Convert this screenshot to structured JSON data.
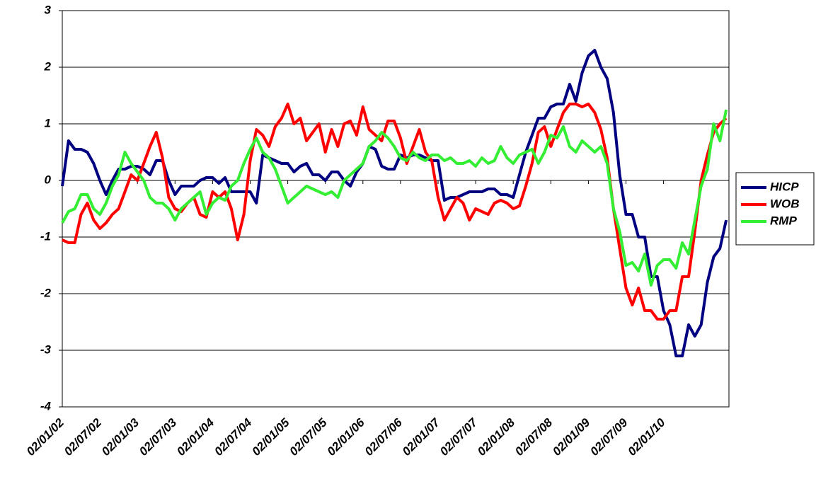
{
  "chart_data": {
    "type": "line",
    "categories": [
      "02/01/02",
      null,
      null,
      null,
      null,
      null,
      "02/07/02",
      null,
      null,
      null,
      null,
      null,
      "02/01/03",
      null,
      null,
      null,
      null,
      null,
      "02/07/03",
      null,
      null,
      null,
      null,
      null,
      "02/01/04",
      null,
      null,
      null,
      null,
      null,
      "02/07/04",
      null,
      null,
      null,
      null,
      null,
      "02/01/05",
      null,
      null,
      null,
      null,
      null,
      "02/07/05",
      null,
      null,
      null,
      null,
      null,
      "02/01/06",
      null,
      null,
      null,
      null,
      null,
      "02/07/06",
      null,
      null,
      null,
      null,
      null,
      "02/01/07",
      null,
      null,
      null,
      null,
      null,
      "02/07/07",
      null,
      null,
      null,
      null,
      null,
      "02/01/08",
      null,
      null,
      null,
      null,
      null,
      "02/07/08",
      null,
      null,
      null,
      null,
      null,
      "02/01/09",
      null,
      null,
      null,
      null,
      null,
      "02/07/09",
      null,
      null,
      null,
      null,
      null,
      "02/01/10",
      null,
      null,
      null,
      null,
      null,
      null,
      null,
      null,
      null,
      null
    ],
    "series": [
      {
        "name": "HICP",
        "color": "#000080",
        "values": [
          -0.1,
          0.7,
          0.55,
          0.55,
          0.5,
          0.3,
          0,
          -0.25,
          0,
          0.2,
          0.2,
          0.25,
          0.25,
          0.2,
          0.1,
          0.35,
          0.35,
          0,
          -0.25,
          -0.1,
          -0.1,
          -0.1,
          0,
          0.05,
          0.05,
          -0.05,
          0.05,
          -0.2,
          -0.2,
          -0.2,
          -0.2,
          -0.4,
          0.45,
          0.4,
          0.35,
          0.3,
          0.3,
          0.15,
          0.25,
          0.3,
          0.1,
          0.1,
          0,
          0.15,
          0.15,
          0,
          -0.1,
          0.15,
          0.3,
          0.6,
          0.55,
          0.25,
          0.2,
          0.2,
          0.45,
          0.4,
          0.45,
          0.45,
          0.4,
          0.35,
          0.35,
          -0.35,
          -0.3,
          -0.3,
          -0.25,
          -0.2,
          -0.2,
          -0.2,
          -0.15,
          -0.15,
          -0.25,
          -0.25,
          -0.3,
          0.1,
          0.5,
          0.8,
          1.1,
          1.1,
          1.3,
          1.35,
          1.35,
          1.7,
          1.4,
          1.9,
          2.2,
          2.3,
          2.0,
          1.8,
          1.2,
          0.1,
          -0.6,
          -0.6,
          -1.0,
          -1.0,
          -1.7,
          -1.7,
          -2.3,
          -2.55,
          -3.1,
          -3.1,
          -2.55,
          -2.75,
          -2.55,
          -1.8,
          -1.35,
          -1.2,
          -0.7
        ]
      },
      {
        "name": "WOB",
        "color": "#ff0000",
        "values": [
          -1.05,
          -1.1,
          -1.1,
          -0.6,
          -0.4,
          -0.7,
          -0.85,
          -0.75,
          -0.6,
          -0.5,
          -0.2,
          0.1,
          0.0,
          0.3,
          0.6,
          0.85,
          0.4,
          -0.3,
          -0.5,
          -0.55,
          -0.4,
          -0.3,
          -0.6,
          -0.65,
          -0.2,
          -0.3,
          -0.2,
          -0.5,
          -1.05,
          -0.6,
          0.35,
          0.9,
          0.8,
          0.6,
          0.95,
          1.1,
          1.35,
          1.0,
          1.1,
          0.7,
          0.85,
          1.0,
          0.5,
          0.9,
          0.6,
          1.0,
          1.05,
          0.8,
          1.3,
          0.9,
          0.8,
          0.7,
          1.05,
          1.05,
          0.75,
          0.3,
          0.6,
          0.9,
          0.5,
          0.35,
          -0.3,
          -0.7,
          -0.5,
          -0.3,
          -0.4,
          -0.7,
          -0.5,
          -0.55,
          -0.6,
          -0.4,
          -0.35,
          -0.4,
          -0.5,
          -0.45,
          -0.1,
          0.3,
          0.85,
          0.95,
          0.6,
          0.9,
          1.2,
          1.35,
          1.35,
          1.3,
          1.35,
          1.2,
          0.9,
          0.4,
          -0.5,
          -1.2,
          -1.9,
          -2.2,
          -1.9,
          -2.3,
          -2.3,
          -2.45,
          -2.45,
          -2.3,
          -2.3,
          -1.7,
          -1.7,
          -0.9,
          0.0,
          0.45,
          0.85,
          1.0,
          1.1
        ]
      },
      {
        "name": "RMP",
        "color": "#33ee33",
        "values": [
          -0.75,
          -0.55,
          -0.5,
          -0.25,
          -0.25,
          -0.5,
          -0.6,
          -0.4,
          -0.1,
          0.1,
          0.5,
          0.3,
          0.15,
          0.0,
          -0.3,
          -0.4,
          -0.4,
          -0.5,
          -0.7,
          -0.5,
          -0.4,
          -0.3,
          -0.2,
          -0.6,
          -0.4,
          -0.3,
          -0.35,
          -0.1,
          0.0,
          0.3,
          0.55,
          0.75,
          0.5,
          0.4,
          0.2,
          -0.1,
          -0.4,
          -0.3,
          -0.2,
          -0.1,
          -0.15,
          -0.2,
          -0.25,
          -0.2,
          -0.3,
          0.0,
          0.1,
          0.2,
          0.3,
          0.6,
          0.7,
          0.85,
          0.75,
          0.6,
          0.4,
          0.35,
          0.5,
          0.4,
          0.35,
          0.45,
          0.45,
          0.35,
          0.4,
          0.3,
          0.3,
          0.35,
          0.25,
          0.4,
          0.3,
          0.35,
          0.6,
          0.4,
          0.3,
          0.45,
          0.5,
          0.55,
          0.3,
          0.5,
          0.8,
          0.75,
          0.95,
          0.6,
          0.5,
          0.7,
          0.6,
          0.5,
          0.6,
          0.3,
          -0.5,
          -0.9,
          -1.5,
          -1.45,
          -1.6,
          -1.3,
          -1.85,
          -1.5,
          -1.4,
          -1.4,
          -1.55,
          -1.1,
          -1.3,
          -0.7,
          -0.1,
          0.2,
          1.0,
          0.7,
          1.25
        ]
      }
    ],
    "ylim": [
      -4,
      3
    ],
    "yticks": [
      -4,
      -3,
      -2,
      -1,
      0,
      1,
      2,
      3
    ],
    "grid": true,
    "legend": "right"
  }
}
